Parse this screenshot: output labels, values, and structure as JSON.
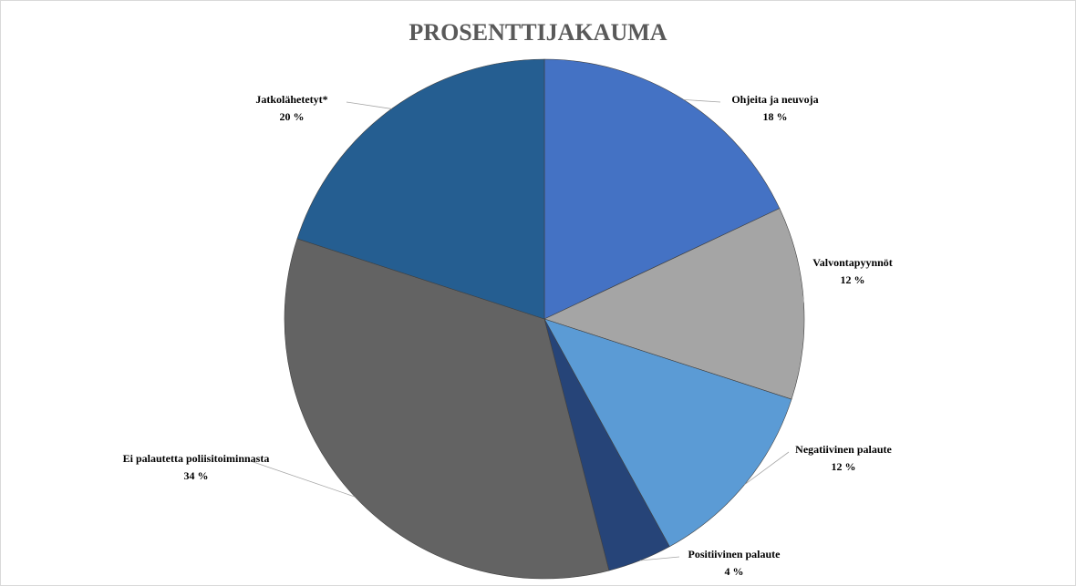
{
  "chart_data": {
    "type": "pie",
    "title": "PROSENTTIJAKAUMA",
    "categories": [
      "Ohjeita ja neuvoja",
      "Valvontapyynnöt",
      "Negatiivinen palaute",
      "Positiivinen palaute",
      "Ei palautetta poliisitoiminnasta",
      "Jatkolähetetyt*"
    ],
    "values": [
      18,
      12,
      12,
      4,
      34,
      20
    ],
    "value_labels": [
      "18 %",
      "12 %",
      "12 %",
      "4 %",
      "34 %",
      "20 %"
    ],
    "colors": [
      "#4472c4",
      "#a5a5a5",
      "#5b9bd5",
      "#264478",
      "#636363",
      "#255e91"
    ]
  }
}
